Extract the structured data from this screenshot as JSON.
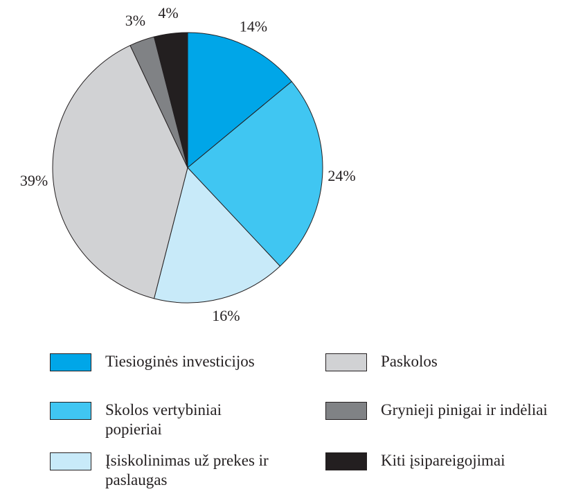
{
  "chart_data": {
    "type": "pie",
    "categories": [
      "Tiesioginės investicijos",
      "Skolos vertybiniai popieriai",
      "Įsiskolinimas už prekes ir paslaugas",
      "Paskolos",
      "Grynieji pinigai ir indėliai",
      "Kiti įsipareigojimai"
    ],
    "values": [
      14,
      24,
      16,
      39,
      3,
      4
    ],
    "value_labels": [
      "14%",
      "24%",
      "16%",
      "39%",
      "3%",
      "4%"
    ],
    "colors": [
      "#00a6e8",
      "#40c6f2",
      "#c8eaf9",
      "#d1d2d4",
      "#808285",
      "#231f20"
    ]
  }
}
